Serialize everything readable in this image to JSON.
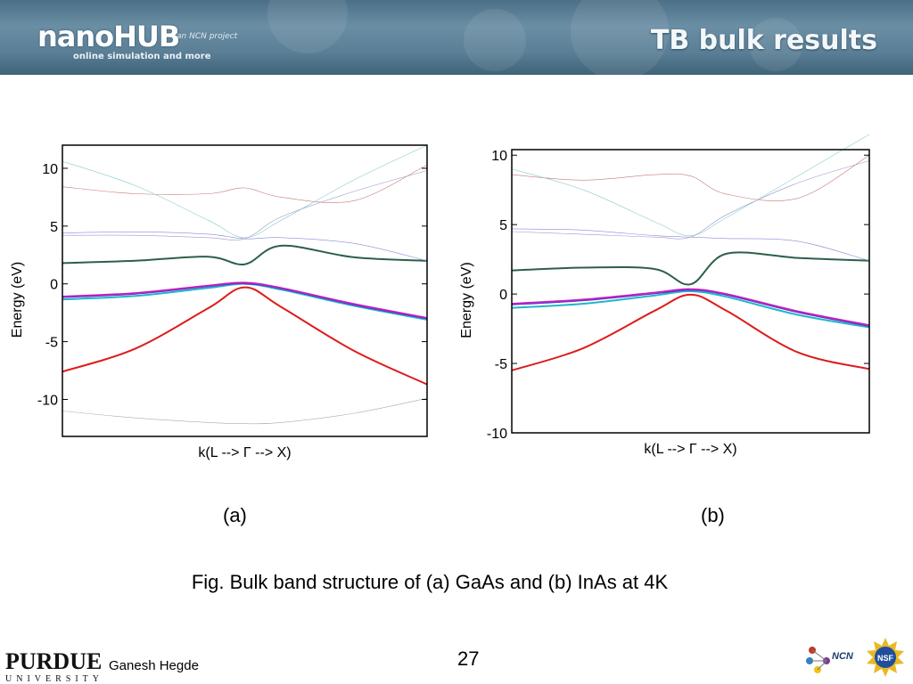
{
  "header": {
    "logo_text": "nanoHUB",
    "logo_tagline": "online simulation and more",
    "logo_ncn": "an NCN project",
    "title": "TB bulk results"
  },
  "footer": {
    "institution_logo_text": "PURDUE",
    "institution_subtext": "UNIVERSITY",
    "author": "Ganesh Hegde",
    "page_number": "27",
    "ncn_logo_text": "NCN",
    "nsf_logo_text": "NSF"
  },
  "panel_labels": [
    "(a)",
    "(b)"
  ],
  "caption": "Fig. Bulk band structure of (a) GaAs and (b) InAs at 4K",
  "chart_data": [
    {
      "type": "line",
      "title": "",
      "xlabel": "k(L --> Γ --> X)",
      "ylabel": "Energy (eV)",
      "ylim": [
        -13.2,
        12
      ],
      "yticks": [
        10,
        5,
        0,
        -5,
        -10
      ],
      "ytick_labels": [
        "10",
        "5",
        "0",
        "-5",
        "-10"
      ],
      "x": [
        0,
        0.2,
        0.4,
        0.5,
        0.6,
        0.8,
        1
      ],
      "series": [
        {
          "color": "#dd1c1c",
          "width": 2,
          "values": [
            -7.6,
            -5.6,
            -2.1,
            -0.3,
            -2.0,
            -5.8,
            -8.7
          ]
        },
        {
          "color": "#22b5c8",
          "width": 2,
          "values": [
            -1.35,
            -1.05,
            -0.35,
            0.0,
            -0.5,
            -1.9,
            -3.1
          ]
        },
        {
          "color": "#3a3ad0",
          "width": 2,
          "values": [
            -1.15,
            -0.85,
            -0.2,
            0.05,
            -0.4,
            -1.8,
            -3.0
          ]
        },
        {
          "color": "#c020c0",
          "width": 2,
          "values": [
            -1.1,
            -0.8,
            -0.15,
            0.1,
            -0.35,
            -1.75,
            -2.95
          ]
        },
        {
          "color": "#2c6047",
          "width": 2,
          "values": [
            1.8,
            2.0,
            2.35,
            1.7,
            3.3,
            2.3,
            2.0
          ]
        },
        {
          "color": "#8888d8",
          "width": 0.6,
          "values": [
            4.4,
            4.5,
            4.3,
            3.9,
            4.0,
            3.5,
            2.0
          ]
        },
        {
          "color": "#c87878",
          "width": 0.6,
          "values": [
            8.4,
            7.8,
            7.8,
            8.3,
            7.5,
            7.2,
            10.3
          ]
        },
        {
          "color": "#88cccc",
          "width": 0.6,
          "values": [
            10.6,
            8.5,
            5.5,
            4.0,
            5.5,
            9.0,
            12.0
          ]
        },
        {
          "color": "#9999cc",
          "width": 0.6,
          "values": [
            4.2,
            4.2,
            4.0,
            3.9,
            5.8,
            8.0,
            9.8
          ]
        },
        {
          "color": "#aaaaaa",
          "width": 0.6,
          "values": [
            -11.0,
            -11.6,
            -12.0,
            -12.1,
            -12.0,
            -11.2,
            -9.9
          ]
        }
      ]
    },
    {
      "type": "line",
      "title": "",
      "xlabel": "k(L --> Γ --> X)",
      "ylabel": "Energy (eV)",
      "ylim": [
        -10,
        10.4
      ],
      "yticks": [
        10,
        5,
        0,
        -5,
        -10
      ],
      "ytick_labels": [
        "10",
        "5",
        "0",
        "-5",
        "-10"
      ],
      "x": [
        0,
        0.2,
        0.4,
        0.5,
        0.6,
        0.8,
        1
      ],
      "series": [
        {
          "color": "#dd1c1c",
          "width": 2,
          "values": [
            -5.5,
            -3.9,
            -1.2,
            -0.05,
            -1.2,
            -4.2,
            -5.4
          ]
        },
        {
          "color": "#22b5c8",
          "width": 2,
          "values": [
            -1.0,
            -0.7,
            -0.1,
            0.2,
            -0.2,
            -1.5,
            -2.4
          ]
        },
        {
          "color": "#3a3ad0",
          "width": 2,
          "values": [
            -0.75,
            -0.45,
            0.05,
            0.3,
            -0.05,
            -1.3,
            -2.3
          ]
        },
        {
          "color": "#c020c0",
          "width": 2,
          "values": [
            -0.7,
            -0.4,
            0.1,
            0.35,
            0.0,
            -1.25,
            -2.25
          ]
        },
        {
          "color": "#2c6047",
          "width": 2,
          "values": [
            1.7,
            1.9,
            1.8,
            0.7,
            2.9,
            2.6,
            2.4
          ]
        },
        {
          "color": "#8888d8",
          "width": 0.6,
          "values": [
            4.7,
            4.6,
            4.2,
            4.1,
            4.0,
            3.8,
            2.4
          ]
        },
        {
          "color": "#c87878",
          "width": 0.6,
          "values": [
            8.6,
            8.2,
            8.6,
            8.5,
            7.2,
            6.9,
            10.0
          ]
        },
        {
          "color": "#88cccc",
          "width": 0.6,
          "values": [
            9.0,
            7.5,
            5.2,
            4.2,
            5.5,
            8.5,
            11.5
          ]
        },
        {
          "color": "#9999cc",
          "width": 0.6,
          "values": [
            4.5,
            4.3,
            4.1,
            4.1,
            5.7,
            8.0,
            9.6
          ]
        }
      ]
    }
  ]
}
